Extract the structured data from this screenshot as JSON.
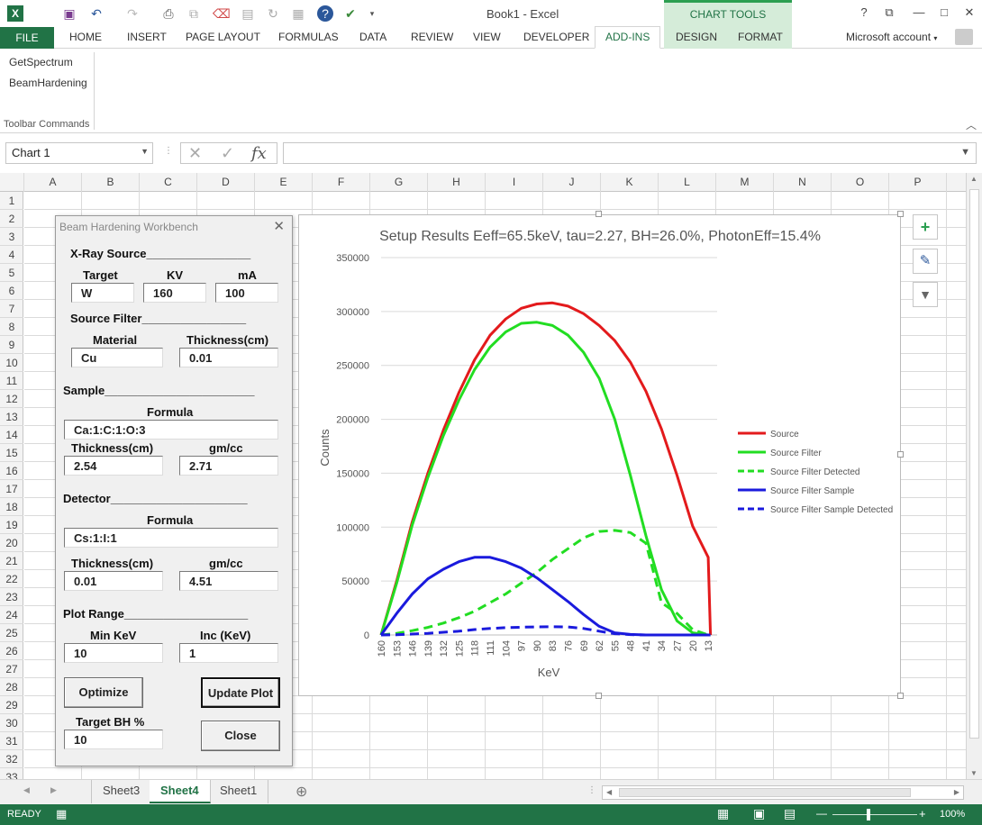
{
  "window": {
    "title": "Book1 - Excel",
    "chart_tools": "CHART TOOLS",
    "account": "Microsoft account",
    "help": "?",
    "restore": "⧉",
    "minimize": "—",
    "maximize": "□",
    "close": "✕"
  },
  "ribbon_tabs": [
    "FILE",
    "HOME",
    "INSERT",
    "PAGE LAYOUT",
    "FORMULAS",
    "DATA",
    "REVIEW",
    "VIEW",
    "DEVELOPER",
    "ADD-INS",
    "DESIGN",
    "FORMAT"
  ],
  "ribbon": {
    "commands": [
      "GetSpectrum",
      "BeamHardening"
    ],
    "group_label": "Toolbar Commands"
  },
  "formula_bar": {
    "name_box": "Chart 1",
    "cancel": "✕",
    "enter": "✓",
    "fx": "fx",
    "formula": ""
  },
  "grid": {
    "columns": [
      "A",
      "B",
      "C",
      "D",
      "E",
      "F",
      "G",
      "H",
      "I",
      "J",
      "K",
      "L",
      "M",
      "N",
      "O",
      "P"
    ],
    "rows": [
      "1",
      "2",
      "3",
      "4",
      "5",
      "6",
      "7",
      "8",
      "9",
      "10",
      "11",
      "12",
      "13",
      "14",
      "15",
      "16",
      "17",
      "18",
      "19",
      "20",
      "21",
      "22",
      "23",
      "24",
      "25",
      "26",
      "27",
      "28",
      "29",
      "30",
      "31",
      "32",
      "33"
    ]
  },
  "sheets": {
    "tabs": [
      "Sheet3",
      "Sheet4",
      "Sheet1"
    ],
    "active": "Sheet4",
    "add": "⊕"
  },
  "status": {
    "ready": "READY",
    "zoom": "100%"
  },
  "dialog": {
    "title": "Beam Hardening Workbench",
    "close": "✕",
    "xray_source": "X-Ray Source________________",
    "target_label": "Target",
    "kv_label": "KV",
    "ma_label": "mA",
    "target": "W",
    "kv": "160",
    "ma": "100",
    "source_filter": "Source Filter________________",
    "material_label": "Material",
    "thickness_cm_label": "Thickness(cm)",
    "material": "Cu",
    "filter_thickness": "0.01",
    "sample": "Sample_______________________",
    "formula_label": "Formula",
    "sample_formula": "Ca:1:C:1:O:3",
    "sample_thickness_label": "Thickness(cm)",
    "sample_density_label": "gm/cc",
    "sample_thickness": "2.54",
    "sample_density": "2.71",
    "detector": "Detector_____________________",
    "detector_formula_label": "Formula",
    "detector_formula": "Cs:1:I:1",
    "detector_thickness_label": "Thickness(cm)",
    "detector_density_label": "gm/cc",
    "detector_thickness": "0.01",
    "detector_density": "4.51",
    "plot_range": "Plot Range___________________",
    "min_kev_label": "Min KeV",
    "inc_kev_label": "Inc (KeV)",
    "min_kev": "10",
    "inc_kev": "1",
    "optimize": "Optimize",
    "update_plot": "Update Plot",
    "target_bh_label": "Target BH %",
    "target_bh": "10",
    "close_button": "Close"
  },
  "chart_data": {
    "type": "line",
    "title": "Setup Results Eeff=65.5keV, tau=2.27, BH=26.0%, PhotonEff=15.4%",
    "xlabel": "KeV",
    "ylabel": "Counts",
    "ylim": [
      0,
      350000
    ],
    "yticks": [
      "0",
      "50000",
      "100000",
      "150000",
      "200000",
      "250000",
      "300000",
      "350000"
    ],
    "x_ticks": [
      "160",
      "153",
      "146",
      "139",
      "132",
      "125",
      "118",
      "111",
      "104",
      "97",
      "90",
      "83",
      "76",
      "69",
      "62",
      "55",
      "48",
      "41",
      "34",
      "27",
      "20",
      "13"
    ],
    "x_range": [
      160,
      9
    ],
    "legend_position": "right",
    "x": [
      160,
      153,
      146,
      139,
      132,
      125,
      118,
      111,
      104,
      97,
      90,
      83,
      76,
      69,
      62,
      55,
      48,
      41,
      34,
      27,
      20,
      13,
      12
    ],
    "series": [
      {
        "name": "Source",
        "color": "#e31a1c",
        "dash": false,
        "values": [
          0,
          50000,
          105000,
          150000,
          190000,
          225000,
          255000,
          278000,
          293000,
          303000,
          307000,
          308000,
          305000,
          298000,
          287000,
          273000,
          253000,
          226000,
          191000,
          148000,
          101000,
          72000,
          0
        ]
      },
      {
        "name": "Source Filter",
        "color": "#22dd22",
        "dash": false,
        "values": [
          0,
          48000,
          102000,
          146000,
          185000,
          218000,
          246000,
          267000,
          281000,
          289000,
          290000,
          287000,
          278000,
          262000,
          238000,
          200000,
          148000,
          92000,
          42000,
          13000,
          2000,
          0,
          0
        ]
      },
      {
        "name": "Source Filter Detected",
        "color": "#22dd22",
        "dash": true,
        "values": [
          0,
          1500,
          4000,
          7000,
          11000,
          16000,
          22000,
          30000,
          38000,
          48000,
          58000,
          70000,
          80000,
          90000,
          96000,
          97000,
          95000,
          85000,
          30000,
          20000,
          5000,
          0,
          0
        ]
      },
      {
        "name": "Source Filter Sample",
        "color": "#1a1add",
        "dash": false,
        "values": [
          0,
          20000,
          38000,
          52000,
          61000,
          68000,
          72000,
          72000,
          68000,
          62000,
          53000,
          42000,
          31000,
          19000,
          8000,
          2000,
          500,
          0,
          0,
          0,
          0,
          0,
          0
        ]
      },
      {
        "name": "Source Filter Sample Detected",
        "color": "#1a1add",
        "dash": true,
        "values": [
          0,
          200,
          800,
          1500,
          2500,
          3500,
          5000,
          6000,
          6800,
          7200,
          7500,
          7600,
          7400,
          6000,
          3500,
          1200,
          300,
          0,
          0,
          0,
          0,
          0,
          0
        ]
      }
    ]
  }
}
